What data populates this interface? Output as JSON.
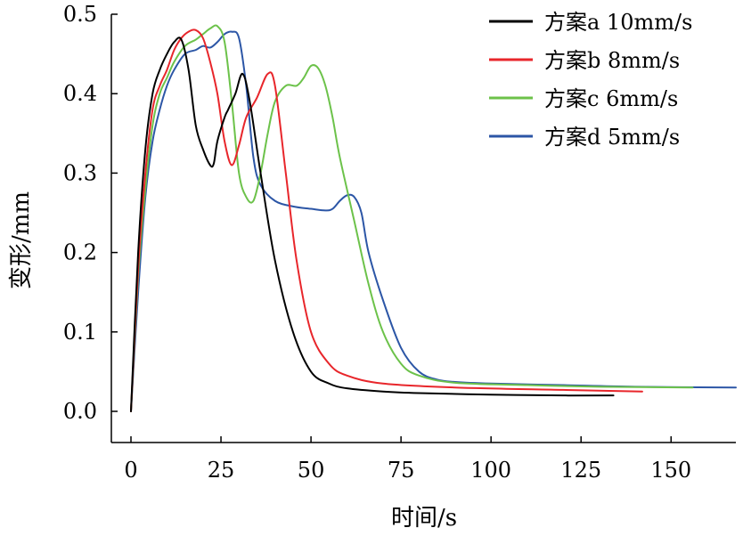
{
  "chart_data": {
    "type": "line",
    "xlabel": "时间/s",
    "ylabel": "变形/mm",
    "xlim": [
      0,
      168
    ],
    "ylim": [
      0,
      0.5
    ],
    "xticks": [
      0,
      25,
      50,
      75,
      100,
      125,
      150
    ],
    "yticks": [
      0.0,
      0.1,
      0.2,
      0.3,
      0.4,
      0.5
    ],
    "xtick_labels": [
      "0",
      "25",
      "50",
      "75",
      "100",
      "125",
      "150"
    ],
    "ytick_labels": [
      "0.0",
      "0.1",
      "0.2",
      "0.3",
      "0.4",
      "0.5"
    ],
    "grid": false,
    "legend_position": "top-right",
    "series": [
      {
        "name": "方案a 10mm/s",
        "color": "#000000",
        "x": [
          0,
          2,
          4,
          6,
          8,
          10,
          12,
          14,
          16,
          18,
          20,
          22,
          23,
          24,
          26,
          27,
          29,
          31,
          33,
          36,
          40,
          45,
          50,
          55,
          60,
          70,
          80,
          100,
          120,
          134
        ],
        "y": [
          0.0,
          0.2,
          0.33,
          0.4,
          0.43,
          0.45,
          0.465,
          0.468,
          0.43,
          0.36,
          0.33,
          0.31,
          0.312,
          0.34,
          0.37,
          0.38,
          0.4,
          0.425,
          0.39,
          0.3,
          0.19,
          0.1,
          0.05,
          0.035,
          0.029,
          0.025,
          0.023,
          0.021,
          0.02,
          0.02
        ]
      },
      {
        "name": "方案b 8mm/s",
        "color": "#e8262b",
        "x": [
          0,
          2,
          4,
          6,
          8,
          10,
          12,
          14,
          16,
          18,
          20,
          22,
          24,
          26,
          28,
          30,
          32,
          35,
          38,
          40,
          43,
          46,
          50,
          55,
          60,
          70,
          90,
          120,
          142
        ],
        "y": [
          0.0,
          0.18,
          0.3,
          0.38,
          0.41,
          0.43,
          0.455,
          0.47,
          0.478,
          0.48,
          0.47,
          0.44,
          0.4,
          0.34,
          0.31,
          0.335,
          0.37,
          0.395,
          0.425,
          0.41,
          0.3,
          0.19,
          0.1,
          0.06,
          0.045,
          0.035,
          0.03,
          0.027,
          0.025
        ]
      },
      {
        "name": "方案c 6mm/s",
        "color": "#6cc24a",
        "x": [
          0,
          2,
          4,
          6,
          8,
          10,
          12,
          15,
          18,
          20,
          22,
          24,
          26,
          28,
          30,
          32,
          34,
          36,
          38,
          40,
          43,
          46,
          48,
          50,
          52,
          54,
          56,
          58,
          62,
          66,
          70,
          75,
          80,
          90,
          110,
          130,
          156
        ],
        "y": [
          0.0,
          0.17,
          0.28,
          0.36,
          0.4,
          0.42,
          0.44,
          0.46,
          0.468,
          0.475,
          0.482,
          0.485,
          0.465,
          0.39,
          0.3,
          0.27,
          0.265,
          0.3,
          0.35,
          0.39,
          0.41,
          0.41,
          0.42,
          0.435,
          0.432,
          0.41,
          0.37,
          0.32,
          0.24,
          0.16,
          0.1,
          0.06,
          0.045,
          0.036,
          0.033,
          0.031,
          0.03
        ]
      },
      {
        "name": "方案d 5mm/s",
        "color": "#2c56a6",
        "x": [
          0,
          2,
          4,
          6,
          8,
          10,
          12,
          15,
          18,
          20,
          22,
          24,
          26,
          28,
          30,
          32,
          34,
          36,
          40,
          45,
          50,
          54,
          56,
          58,
          60,
          62,
          64,
          66,
          70,
          75,
          80,
          85,
          90,
          100,
          120,
          140,
          168
        ],
        "y": [
          0.0,
          0.15,
          0.27,
          0.34,
          0.38,
          0.41,
          0.43,
          0.45,
          0.455,
          0.46,
          0.458,
          0.465,
          0.475,
          0.478,
          0.47,
          0.41,
          0.32,
          0.285,
          0.265,
          0.258,
          0.255,
          0.253,
          0.255,
          0.265,
          0.272,
          0.27,
          0.25,
          0.2,
          0.14,
          0.08,
          0.05,
          0.04,
          0.037,
          0.035,
          0.033,
          0.031,
          0.03
        ]
      }
    ]
  }
}
